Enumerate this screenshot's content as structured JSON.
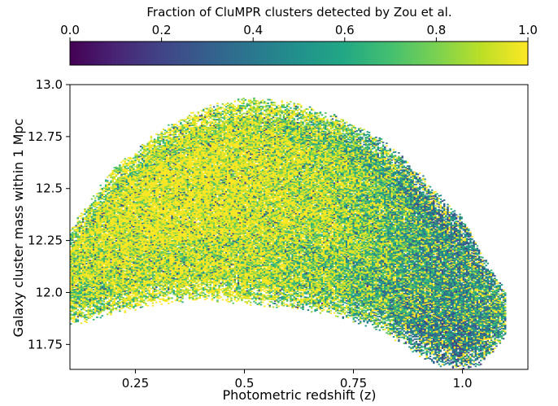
{
  "chart_data": {
    "type": "heatmap",
    "title": "",
    "xlabel": "Photometric redshift (z)",
    "ylabel": "Galaxy cluster mass within 1 Mpc",
    "colorbar_label": "Fraction of CluMPR clusters detected by Zou et al.",
    "colormap": "viridis",
    "xlim": [
      0.1,
      1.15
    ],
    "ylim": [
      11.63,
      13.0
    ],
    "clim": [
      0.0,
      1.0
    ],
    "x_ticks": [
      0.25,
      0.5,
      0.75,
      1.0
    ],
    "x_tick_labels": [
      "0.25",
      "0.5",
      "0.75",
      "1.0"
    ],
    "y_ticks": [
      11.75,
      12.0,
      12.25,
      12.5,
      12.75,
      13.0
    ],
    "y_tick_labels": [
      "11.75",
      "12.0",
      "12.25",
      "12.5",
      "12.75",
      "13.0"
    ],
    "colorbar_ticks": [
      0.0,
      0.2,
      0.4,
      0.6,
      0.8,
      1.0
    ],
    "colorbar_tick_labels": [
      "0.0",
      "0.2",
      "0.4",
      "0.6",
      "0.8",
      "1.0"
    ],
    "colorbar_position": "top",
    "grid": false,
    "region_profile": {
      "z": [
        0.1,
        0.15,
        0.2,
        0.3,
        0.4,
        0.5,
        0.6,
        0.7,
        0.8,
        0.85,
        0.9,
        0.95,
        1.0,
        1.05,
        1.1
      ],
      "mass_min": [
        11.9,
        11.92,
        11.95,
        12.0,
        12.02,
        12.0,
        11.98,
        11.95,
        11.88,
        11.82,
        11.75,
        11.7,
        11.68,
        11.72,
        11.85
      ],
      "mass_max": [
        12.25,
        12.4,
        12.55,
        12.72,
        12.83,
        12.88,
        12.86,
        12.8,
        12.7,
        12.62,
        12.52,
        12.4,
        12.3,
        12.1,
        11.95
      ],
      "mean_fraction": [
        0.82,
        0.86,
        0.88,
        0.92,
        0.93,
        0.9,
        0.85,
        0.78,
        0.66,
        0.58,
        0.5,
        0.45,
        0.45,
        0.5,
        0.55
      ]
    }
  }
}
